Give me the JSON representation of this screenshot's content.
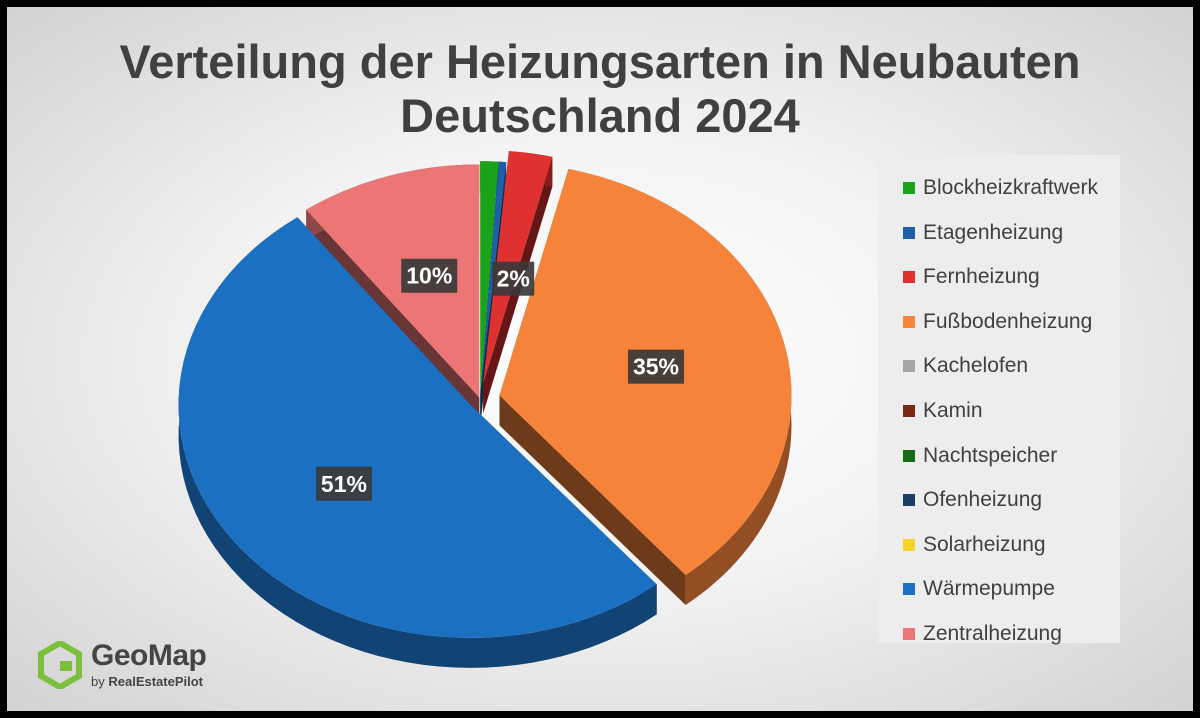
{
  "chart_data": {
    "type": "pie",
    "title": [
      "Verteilung der Heizungsarten in Neubauten",
      "Deutschland 2024"
    ],
    "slices": [
      {
        "name": "Blockheizkraftwerk",
        "value": 1.0,
        "color": "#1aa31a",
        "label": ""
      },
      {
        "name": "Etagenheizung",
        "value": 0.4,
        "color": "#1f5fa8",
        "label": ""
      },
      {
        "name": "Fernheizung",
        "value": 2.4,
        "color": "#e03131",
        "label": "2%"
      },
      {
        "name": "Fußbodenheizung",
        "value": 35.2,
        "color": "#f5833a",
        "label": "35%"
      },
      {
        "name": "Kachelofen",
        "value": 0.0,
        "color": "#a5a5a5",
        "label": ""
      },
      {
        "name": "Kamin",
        "value": 0.0,
        "color": "#7a2a14",
        "label": ""
      },
      {
        "name": "Nachtspeicher",
        "value": 0.0,
        "color": "#176b17",
        "label": ""
      },
      {
        "name": "Ofenheizung",
        "value": 0.0,
        "color": "#173c66",
        "label": ""
      },
      {
        "name": "Solarheizung",
        "value": 0.0,
        "color": "#f5d32c",
        "label": ""
      },
      {
        "name": "Wärmepumpe",
        "value": 50.9,
        "color": "#1c70c2",
        "label": "51%"
      },
      {
        "name": "Zentralheizung",
        "value": 10.1,
        "color": "#ec7676",
        "label": "10%"
      }
    ],
    "legend_position": "right"
  },
  "logo": {
    "name": "GeoMap",
    "by": "by",
    "company": "RealEstatePilot",
    "color": "#7cbf3b"
  }
}
